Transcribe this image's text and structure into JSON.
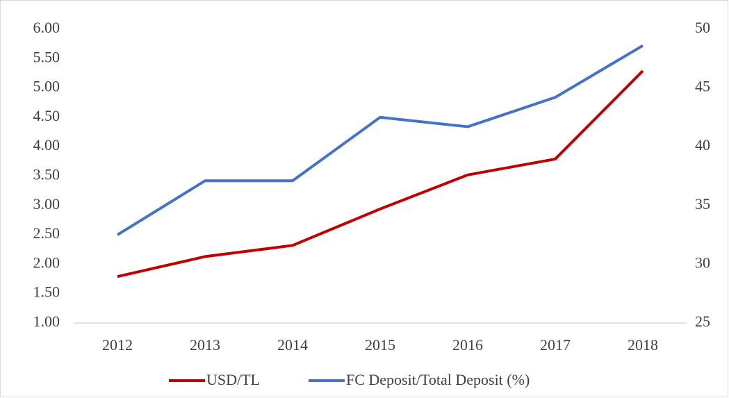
{
  "chart_data": {
    "type": "line",
    "categories": [
      "2012",
      "2013",
      "2014",
      "2015",
      "2016",
      "2017",
      "2018"
    ],
    "series": [
      {
        "name": "USD/TL",
        "color": "#c00000",
        "values": [
          1.79,
          2.13,
          2.32,
          2.94,
          3.52,
          3.79,
          5.29
        ]
      },
      {
        "name": "FC Deposit/Total Deposit (%)",
        "color": "#4472c4",
        "axis": "y2",
        "values": [
          32.5,
          37.1,
          37.1,
          42.5,
          41.7,
          44.2,
          48.6
        ]
      }
    ],
    "ylim": [
      1,
      6
    ],
    "yticks": [
      {
        "value": 1,
        "label": "1.00"
      },
      {
        "value": 1.5,
        "label": "1.50"
      },
      {
        "value": 2,
        "label": "2.00"
      },
      {
        "value": 2.5,
        "label": "2.50"
      },
      {
        "value": 3,
        "label": "3.00"
      },
      {
        "value": 3.5,
        "label": "3.50"
      },
      {
        "value": 4,
        "label": "4.00"
      },
      {
        "value": 4.5,
        "label": "4.50"
      },
      {
        "value": 5,
        "label": "5.00"
      },
      {
        "value": 5.5,
        "label": "5.50"
      },
      {
        "value": 6,
        "label": "6.00"
      }
    ],
    "y2lim": [
      25,
      50
    ],
    "y2ticks": [
      25,
      30,
      35,
      40,
      45,
      50
    ],
    "grid": false,
    "legend": "bottom"
  }
}
